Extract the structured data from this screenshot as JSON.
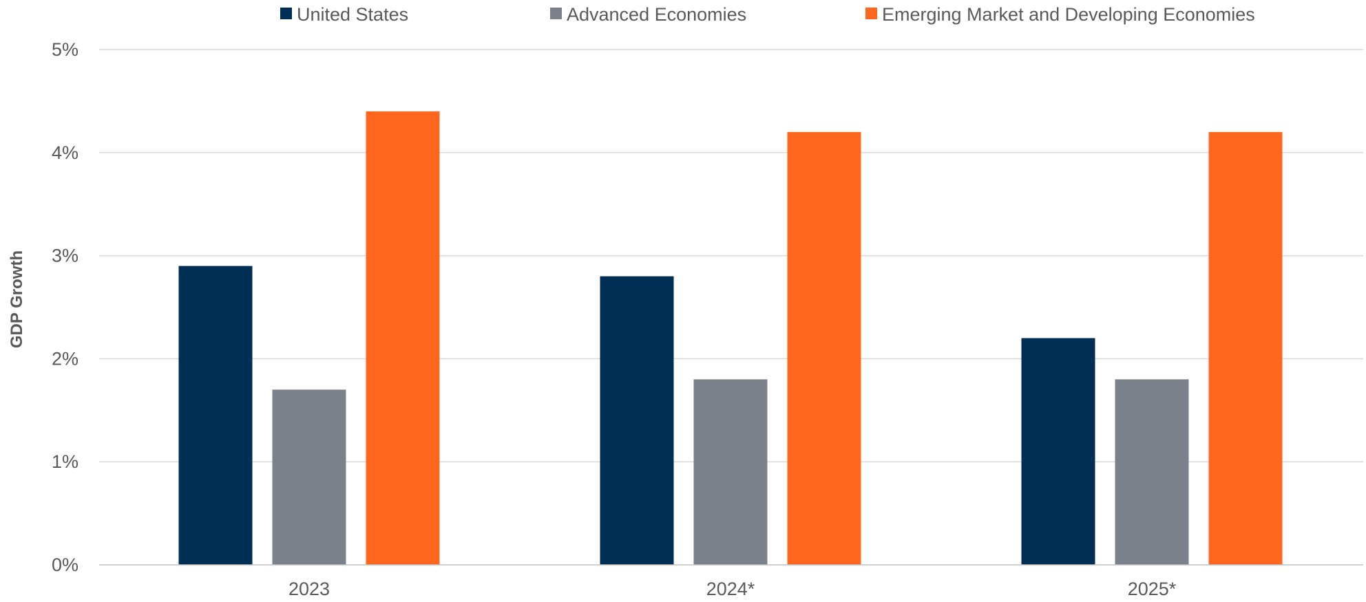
{
  "chart_data": {
    "type": "bar",
    "title": "",
    "xlabel": "",
    "ylabel": "GDP Growth",
    "categories": [
      "2023",
      "2024*",
      "2025*"
    ],
    "series": [
      {
        "name": "United States",
        "values": [
          2.9,
          2.8,
          2.2
        ],
        "color": "#002f56"
      },
      {
        "name": "Advanced Economies",
        "values": [
          1.7,
          1.8,
          1.8
        ],
        "color": "#7b818a"
      },
      {
        "name": "Emerging Market and Developing Economies",
        "values": [
          4.4,
          4.2,
          4.2
        ],
        "color": "#ff671f"
      }
    ],
    "ylim": [
      0,
      5
    ],
    "yticks": [
      0,
      1,
      2,
      3,
      4,
      5
    ],
    "ytick_labels": [
      "0%",
      "1%",
      "2%",
      "3%",
      "4%",
      "5%"
    ],
    "grid": true,
    "legend": "top-center"
  }
}
